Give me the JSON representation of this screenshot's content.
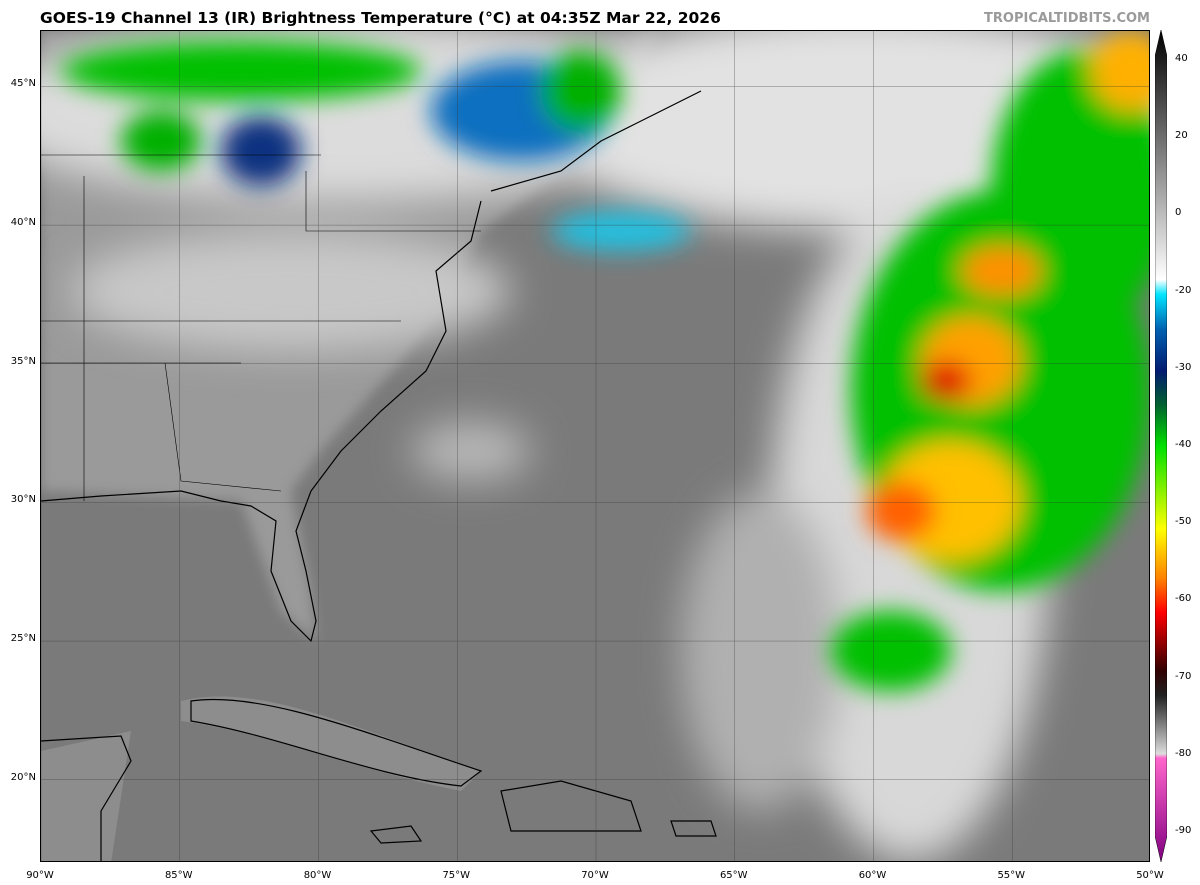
{
  "title": "GOES-19 Channel 13 (IR) Brightness Temperature (°C) at 04:35Z Mar 22, 2026",
  "brand": "TROPICALTIDBITS.COM",
  "map": {
    "lat_labels": [
      "45°N",
      "40°N",
      "35°N",
      "30°N",
      "25°N",
      "20°N"
    ],
    "lon_labels": [
      "90°W",
      "85°W",
      "80°W",
      "75°W",
      "70°W",
      "65°W",
      "60°W",
      "55°W",
      "50°W"
    ],
    "extent": {
      "lon": [
        -90,
        -50
      ],
      "lat": [
        17,
        47
      ]
    }
  },
  "colorbar": {
    "unit": "°C",
    "ticks": [
      "40",
      "20",
      "0",
      "-20",
      "-30",
      "-40",
      "-50",
      "-60",
      "-70",
      "-80",
      "-90"
    ],
    "colors": {
      "warm": "#000000",
      "mid": "#ffffff",
      "cyan": "#00e5ff",
      "blue": "#0050b0",
      "navy": "#001a70",
      "green": "#00e000",
      "yellow": "#ffff00",
      "orange": "#ff8000",
      "red": "#ff0000",
      "darkred": "#500000",
      "pink": "#ff66cc",
      "purple": "#800080"
    }
  }
}
